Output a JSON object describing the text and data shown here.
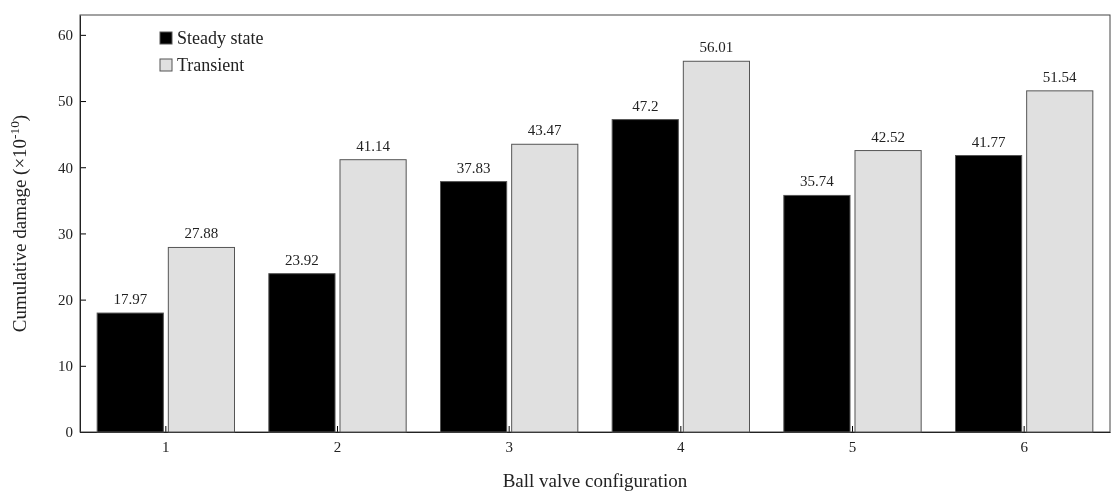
{
  "chart_data": {
    "type": "bar",
    "xlabel": "Ball valve configuration",
    "ylabel": "Cumulative damage (×10$^{-10}$)",
    "categories": [
      "1",
      "2",
      "3",
      "4",
      "5",
      "6"
    ],
    "series": [
      {
        "name": "Steady state",
        "color": "#000000",
        "values": [
          17.97,
          23.92,
          37.83,
          47.2,
          35.74,
          41.77
        ]
      },
      {
        "name": "Transient",
        "color": "#e0e0e0",
        "values": [
          27.88,
          41.14,
          43.47,
          56.01,
          42.52,
          51.54
        ]
      }
    ],
    "ylim": [
      0,
      63
    ],
    "yticks": [
      0,
      10,
      20,
      30,
      40,
      50,
      60
    ],
    "data_labels": true,
    "legend": "top left",
    "grid": false
  }
}
